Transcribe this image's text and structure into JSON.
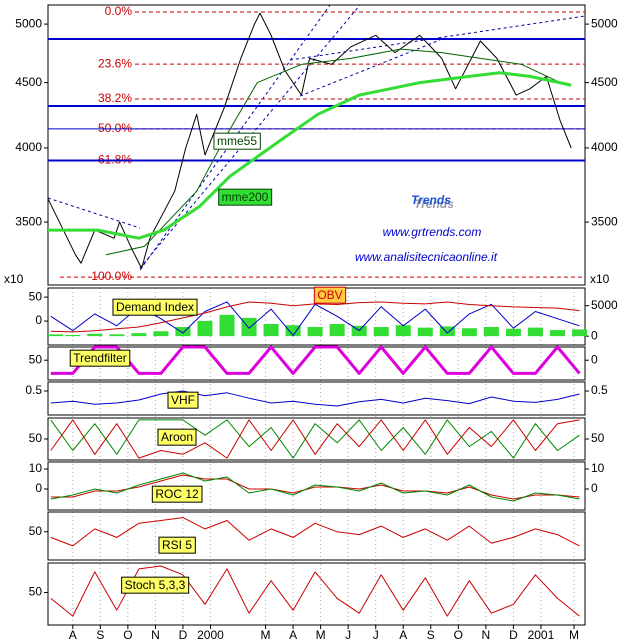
{
  "chart_data": [
    {
      "type": "line",
      "log_scale": true,
      "ylim": [
        3125,
        5175
      ],
      "yticks": [
        3500,
        4000,
        4500,
        5000
      ],
      "mirror_ticks": true,
      "xlim": [
        -0.9,
        18.6
      ],
      "xticks": [
        {
          "value": 0,
          "label": "A"
        },
        {
          "value": 1,
          "label": "S"
        },
        {
          "value": 2,
          "label": "O"
        },
        {
          "value": 3,
          "label": "N"
        },
        {
          "value": 4,
          "label": "D"
        },
        {
          "value": 5,
          "label": "2000"
        },
        {
          "value": 7,
          "label": "M"
        },
        {
          "value": 8,
          "label": "A"
        },
        {
          "value": 9,
          "label": "M"
        },
        {
          "value": 10,
          "label": "J"
        },
        {
          "value": 11,
          "label": "J"
        },
        {
          "value": 12,
          "label": "A"
        },
        {
          "value": 13,
          "label": "S"
        },
        {
          "value": 14,
          "label": "O"
        },
        {
          "value": 15,
          "label": "N"
        },
        {
          "value": 16,
          "label": "D"
        },
        {
          "value": 17,
          "label": "2001"
        },
        {
          "value": 18.2,
          "label": "M"
        }
      ],
      "series": [
        {
          "color": "#000000",
          "line_width": 1,
          "x": [
            -0.9,
            0.1,
            0.3,
            0.8,
            1.5,
            1.7,
            2.1,
            2.5,
            2.8,
            3.7,
            4.1,
            4.5,
            4.8,
            5.5,
            6.1,
            6.6,
            6.8,
            7.2,
            7.7,
            8.3,
            8.6,
            9.4,
            10.1,
            11.0,
            11.7,
            12.6,
            13.4,
            13.9,
            14.8,
            15.4,
            16.1,
            16.6,
            17.2,
            17.7,
            18.1
          ],
          "values": [
            3650,
            3300,
            3250,
            3450,
            3400,
            3500,
            3350,
            3220,
            3400,
            3700,
            4000,
            4250,
            3950,
            4300,
            4700,
            5000,
            5100,
            4900,
            4600,
            4400,
            4700,
            4650,
            4800,
            4900,
            4750,
            4900,
            4700,
            4450,
            4850,
            4700,
            4400,
            4450,
            4550,
            4200,
            4000
          ]
        },
        {
          "color": "#006400",
          "line_width": 1,
          "x": [
            1.2,
            2.6,
            4.5,
            5.6,
            6.7,
            8.3,
            10.1,
            11.9,
            13.4,
            14.8,
            16.3,
            17.7
          ],
          "values": [
            3300,
            3350,
            3700,
            4100,
            4500,
            4650,
            4700,
            4780,
            4750,
            4700,
            4650,
            4500
          ]
        },
        {
          "color": "#33dd33",
          "line_width": 3,
          "x": [
            -0.9,
            0.9,
            2.4,
            3.3,
            4.6,
            5.7,
            7.5,
            8.9,
            10.4,
            12.6,
            14.4,
            15.5,
            16.6,
            18.1
          ],
          "values": [
            3450,
            3450,
            3400,
            3450,
            3600,
            3800,
            4050,
            4250,
            4400,
            4500,
            4550,
            4580,
            4550,
            4480
          ]
        }
      ],
      "hlines": {
        "color": "#0000cc",
        "values": [
          4867,
          4314,
          4140,
          3911
        ]
      },
      "levels": {
        "color": "#cc0000",
        "labels": [
          "0.0%",
          "23.6%",
          "38.2%",
          "50.0%",
          "61.8%",
          "100.0%"
        ],
        "values": [
          5110,
          4652,
          4369,
          4140,
          3911,
          3170
        ]
      },
      "annotations": [
        "mme55",
        "mme200",
        "Trends",
        "www.grtrends.com",
        "www.analisitecnicaonline.it"
      ]
    },
    {
      "type": "line",
      "ylim": [
        -50,
        69
      ],
      "yticks": [
        0,
        50
      ],
      "y2lim": [
        -1450,
        7900
      ],
      "y2ticks": [
        0,
        5000
      ],
      "scale_note": "x10",
      "labels": [
        "Demand Index",
        "OBV"
      ],
      "x": [
        -0.8,
        0,
        0.8,
        1.6,
        2.4,
        3.2,
        4,
        4.8,
        5.6,
        6.4,
        7.2,
        8,
        8.8,
        9.6,
        10.4,
        11.2,
        12,
        12.8,
        13.6,
        14.4,
        15.2,
        16,
        16.8,
        17.6,
        18.4
      ],
      "series": [
        {
          "type": "bar",
          "axis": "y2",
          "color": "#33dd33",
          "values": [
            300,
            200,
            400,
            300,
            500,
            800,
            1500,
            2500,
            3500,
            3000,
            2000,
            1800,
            1500,
            2000,
            1700,
            1500,
            1800,
            1400,
            1600,
            1300,
            1500,
            1200,
            1400,
            1000,
            1100
          ]
        },
        {
          "color": "#0000cc",
          "values": [
            10,
            -20,
            15,
            -10,
            30,
            5,
            -25,
            20,
            40,
            -15,
            25,
            -30,
            35,
            10,
            -20,
            30,
            -10,
            25,
            -25,
            15,
            35,
            -15,
            20,
            5,
            -10
          ]
        },
        {
          "axis": "y2",
          "color": "#cc0000",
          "values": [
            800,
            700,
            900,
            1200,
            1500,
            2200,
            3000,
            3800,
            4800,
            5600,
            5400,
            5000,
            5300,
            5200,
            5500,
            5600,
            5400,
            5300,
            5600,
            5200,
            5000,
            4800,
            4700,
            4600,
            4200
          ]
        }
      ]
    },
    {
      "type": "line",
      "ylim": [
        -40,
        110
      ],
      "yticks": [
        50
      ],
      "y2lim": [
        -1.5,
        1
      ],
      "y2ticks": [
        0
      ],
      "labels": [
        "Trendfilter"
      ],
      "x": [
        -0.8,
        0,
        0.8,
        1.6,
        2.4,
        3.2,
        4,
        4.8,
        5.6,
        6.4,
        7.2,
        8,
        8.8,
        9.6,
        10.4,
        11.2,
        12,
        12.8,
        13.6,
        14.4,
        15.2,
        16,
        16.8,
        17.6,
        18.4
      ],
      "series": [
        {
          "axis": "y2",
          "color": "#dd00dd",
          "line_width": 3,
          "values": [
            -1,
            -1,
            1,
            1,
            -1,
            -1,
            1,
            1,
            -1,
            -1,
            1,
            -1,
            1,
            1,
            -1,
            1,
            -1,
            1,
            -1,
            -1,
            1,
            -1,
            -1,
            1,
            -1
          ]
        }
      ]
    },
    {
      "type": "line",
      "ylim": [
        0.1,
        0.65
      ],
      "yticks": [
        0.5
      ],
      "mirror_ticks": true,
      "labels": [
        "VHF"
      ],
      "x": [
        -0.8,
        0,
        0.8,
        1.6,
        2.4,
        3.2,
        4,
        4.8,
        5.6,
        6.4,
        7.2,
        8,
        8.8,
        9.6,
        10.4,
        11.2,
        12,
        12.8,
        13.6,
        14.4,
        15.2,
        16,
        16.8,
        17.6,
        18.4
      ],
      "series": [
        {
          "color": "#0000cc",
          "values": [
            0.3,
            0.33,
            0.28,
            0.3,
            0.35,
            0.45,
            0.5,
            0.42,
            0.47,
            0.38,
            0.3,
            0.33,
            0.28,
            0.25,
            0.32,
            0.36,
            0.3,
            0.38,
            0.34,
            0.29,
            0.4,
            0.33,
            0.31,
            0.36,
            0.45
          ]
        }
      ]
    },
    {
      "type": "line",
      "ylim": [
        -5,
        105
      ],
      "yticks": [
        50
      ],
      "mirror_ticks": true,
      "labels": [
        "Aroon"
      ],
      "x": [
        -0.8,
        0,
        0.8,
        1.6,
        2.4,
        3.2,
        4,
        4.8,
        5.6,
        6.4,
        7.2,
        8,
        8.8,
        9.6,
        10.4,
        11.2,
        12,
        12.8,
        13.6,
        14.4,
        15.2,
        16,
        16.8,
        17.6,
        18.4
      ],
      "series": [
        {
          "color": "#008800",
          "values": [
            100,
            20,
            90,
            10,
            100,
            100,
            100,
            60,
            100,
            30,
            80,
            0,
            90,
            40,
            100,
            20,
            80,
            10,
            100,
            30,
            70,
            0,
            90,
            20,
            60
          ]
        },
        {
          "color": "#cc0000",
          "values": [
            20,
            100,
            10,
            90,
            0,
            20,
            10,
            40,
            0,
            100,
            20,
            100,
            10,
            90,
            30,
            100,
            20,
            100,
            10,
            80,
            30,
            100,
            20,
            90,
            100
          ]
        }
      ]
    },
    {
      "type": "line",
      "ylim": [
        -10.5,
        13.5
      ],
      "yticks": [
        0,
        10
      ],
      "mirror_ticks": true,
      "labels": [
        "ROC 12"
      ],
      "x": [
        -0.8,
        0,
        0.8,
        1.6,
        2.4,
        3.2,
        4,
        4.8,
        5.6,
        6.4,
        7.2,
        8,
        8.8,
        9.6,
        10.4,
        11.2,
        12,
        12.8,
        13.6,
        14.4,
        15.2,
        16,
        16.8,
        17.6,
        18.4
      ],
      "series": [
        {
          "color": "#cc0000",
          "values": [
            -4,
            -4,
            -1,
            -1,
            1,
            4,
            7,
            5,
            5,
            0,
            0,
            -2,
            1,
            1,
            0,
            2,
            -1,
            -1,
            -2,
            1,
            -3,
            -5,
            -3,
            -3,
            -4
          ]
        },
        {
          "color": "#008800",
          "values": [
            -5,
            -3,
            0,
            -2,
            2,
            5,
            8,
            4,
            6,
            -2,
            0,
            -3,
            2,
            1,
            -1,
            3,
            -2,
            -1,
            -3,
            2,
            -4,
            -6,
            -2,
            -3,
            -5
          ]
        }
      ]
    },
    {
      "type": "line",
      "ylim": [
        0,
        85
      ],
      "yticks": [
        50
      ],
      "labels": [
        "RSI 5"
      ],
      "x": [
        -0.8,
        0,
        0.8,
        1.6,
        2.4,
        3.2,
        4,
        4.8,
        5.6,
        6.4,
        7.2,
        8,
        8.8,
        9.6,
        10.4,
        11.2,
        12,
        12.8,
        13.6,
        14.4,
        15.2,
        16,
        16.8,
        17.6,
        18.4
      ],
      "series": [
        {
          "color": "#cc0000",
          "values": [
            40,
            25,
            55,
            40,
            65,
            70,
            75,
            55,
            70,
            35,
            55,
            40,
            65,
            50,
            45,
            60,
            40,
            55,
            35,
            60,
            30,
            40,
            55,
            45,
            25
          ]
        }
      ]
    },
    {
      "type": "line",
      "ylim": [
        -5,
        100
      ],
      "yticks": [
        50
      ],
      "labels": [
        "Stoch 5,3,3"
      ],
      "x": [
        -0.8,
        0,
        0.8,
        1.6,
        2.4,
        3.2,
        4,
        4.8,
        5.6,
        6.4,
        7.2,
        8,
        8.8,
        9.6,
        10.4,
        11.2,
        12,
        12.8,
        13.6,
        14.4,
        15.2,
        16,
        16.8,
        17.6,
        18.4
      ],
      "series": [
        {
          "color": "#cc0000",
          "values": [
            40,
            10,
            85,
            20,
            90,
            95,
            80,
            30,
            90,
            15,
            70,
            20,
            85,
            40,
            15,
            80,
            20,
            75,
            10,
            70,
            15,
            30,
            80,
            40,
            10
          ]
        }
      ]
    }
  ]
}
